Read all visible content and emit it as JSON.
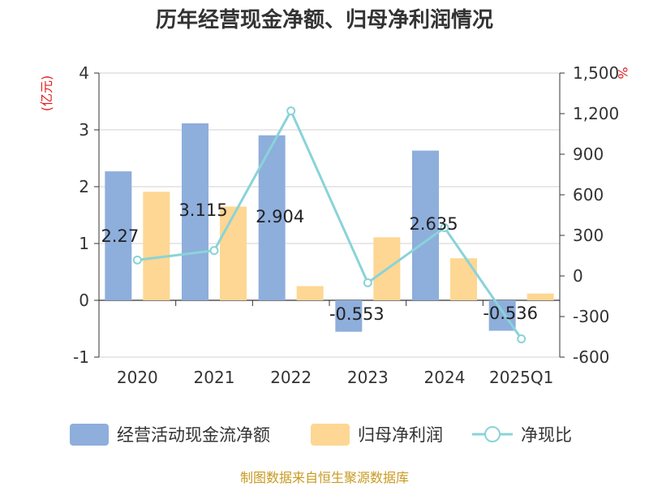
{
  "chart_data": {
    "type": "bar",
    "title": "历年经营现金净额、归母净利润情况",
    "categories": [
      "2020",
      "2021",
      "2022",
      "2023",
      "2024",
      "2025Q1"
    ],
    "left_axis": {
      "unit": "(亿元)",
      "ylim": [
        -1,
        4
      ],
      "ticks": [
        4,
        3,
        2,
        1,
        0,
        -1
      ]
    },
    "right_axis": {
      "unit": "%",
      "ylim": [
        -600,
        1500
      ],
      "ticks": [
        "1,500",
        "1,200",
        "900",
        "600",
        "300",
        "0",
        "-300",
        "-600"
      ]
    },
    "series": [
      {
        "name": "经营活动现金流净额",
        "kind": "bar",
        "axis": "left",
        "color": "#8eaedc",
        "values": [
          2.27,
          3.115,
          2.904,
          -0.553,
          2.635,
          -0.536
        ],
        "labels": [
          "2.27",
          "3.115",
          "2.904",
          "-0.553",
          "2.635",
          "-0.536"
        ]
      },
      {
        "name": "归母净利润",
        "kind": "bar",
        "axis": "left",
        "color": "#fdd793",
        "values": [
          1.91,
          1.65,
          0.25,
          1.11,
          0.74,
          0.12
        ]
      },
      {
        "name": "净现比",
        "kind": "line",
        "axis": "right",
        "color": "#8ad3d9",
        "values": [
          118,
          188,
          1220,
          -50,
          357,
          -465
        ]
      }
    ],
    "grid": true,
    "legend_position": "bottom"
  },
  "source": "制图数据来自恒生聚源数据库"
}
